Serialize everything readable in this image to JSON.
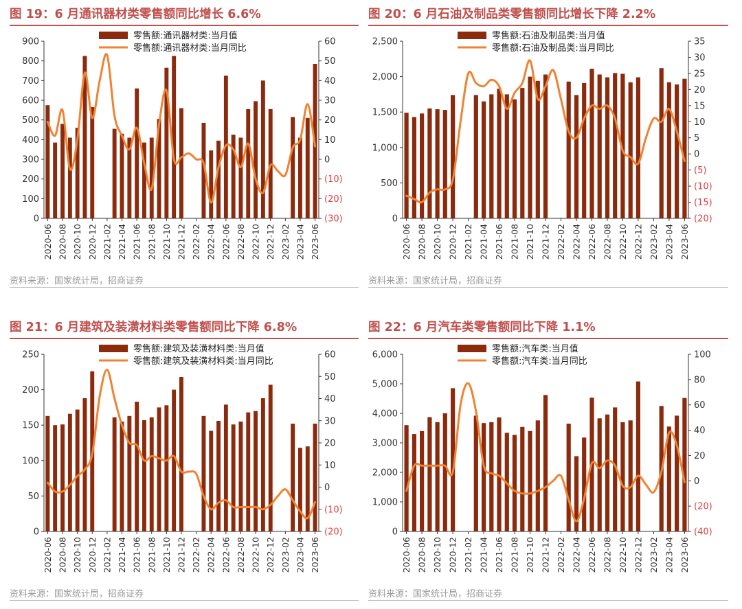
{
  "colors": {
    "bar": "#8b2a0c",
    "line": "#f08232",
    "neg": "#e04040",
    "title": "#c0504d",
    "axis": "#333333"
  },
  "source_text": "资料来源：国家统计局，招商证券",
  "months": [
    "2020-06",
    "2020-07",
    "2020-08",
    "2020-09",
    "2020-10",
    "2020-11",
    "2020-12",
    "2021-01",
    "2021-02",
    "2021-03",
    "2021-04",
    "2021-05",
    "2021-06",
    "2021-07",
    "2021-08",
    "2021-09",
    "2021-10",
    "2021-11",
    "2021-12",
    "2022-01",
    "2022-02",
    "2022-03",
    "2022-04",
    "2022-05",
    "2022-06",
    "2022-07",
    "2022-08",
    "2022-09",
    "2022-10",
    "2022-11",
    "2022-12",
    "2023-01",
    "2023-02",
    "2023-03",
    "2023-04",
    "2023-05",
    "2023-06"
  ],
  "tick_labels": [
    "2020-06",
    "2020-08",
    "2020-10",
    "2020-12",
    "2021-02",
    "2021-04",
    "2021-06",
    "2021-08",
    "2021-10",
    "2021-12",
    "2022-02",
    "2022-04",
    "2022-06",
    "2022-08",
    "2022-10",
    "2022-12",
    "2023-02",
    "2023-04",
    "2023-06"
  ],
  "chart_data": [
    {
      "id": "c19",
      "title": "图 19：6 月通讯器材类零售额同比增长 6.6%",
      "type": "bar+line",
      "legend": [
        "零售额:通讯器材类:当月值",
        "零售额:通讯器材类:当月同比"
      ],
      "left_axis": {
        "min": 0,
        "max": 900,
        "step": 100,
        "ticks": [
          "0",
          "100",
          "200",
          "300",
          "400",
          "500",
          "600",
          "700",
          "800",
          "900"
        ]
      },
      "right_axis": {
        "min": -30,
        "max": 60,
        "step": 10,
        "ticks": [
          "(30)",
          "(20)",
          "(10)",
          "0",
          "10",
          "20",
          "30",
          "40",
          "50",
          "60"
        ]
      },
      "series": [
        {
          "name": "零售额:通讯器材类:当月值",
          "axis": "left",
          "values": [
            575,
            385,
            480,
            410,
            460,
            825,
            565,
            null,
            null,
            455,
            430,
            410,
            660,
            385,
            410,
            505,
            765,
            825,
            560,
            null,
            null,
            485,
            345,
            395,
            725,
            425,
            410,
            555,
            595,
            700,
            555,
            null,
            null,
            515,
            410,
            510,
            785
          ]
        },
        {
          "name": "零售额:通讯器材类:当月同比",
          "axis": "right",
          "values": [
            19,
            12,
            25,
            -5,
            10,
            44,
            21,
            40,
            53,
            22,
            12,
            5,
            16,
            -2,
            -15,
            18,
            35,
            0,
            1,
            3,
            0,
            -2,
            -22,
            -4,
            7,
            5,
            -4,
            8,
            -10,
            -17,
            -3,
            -6,
            -8,
            6,
            10,
            28,
            6.6
          ]
        }
      ]
    },
    {
      "id": "c20",
      "title": "图 20：6 月石油及制品类零售额同比增长下降 2.2%",
      "type": "bar+line",
      "legend": [
        "零售额:石油及制品类:当月值",
        "零售额:石油及制品类:当月同比"
      ],
      "left_axis": {
        "min": 0,
        "max": 2500,
        "step": 500,
        "ticks": [
          "0",
          "500",
          "1,000",
          "1,500",
          "2,000",
          "2,500"
        ]
      },
      "right_axis": {
        "min": -20,
        "max": 35,
        "step": 5,
        "ticks": [
          "(20)",
          "(15)",
          "(10)",
          "(5)",
          "0",
          "5",
          "10",
          "15",
          "20",
          "25",
          "30",
          "35"
        ]
      },
      "series": [
        {
          "name": "零售额:石油及制品类:当月值",
          "axis": "left",
          "values": [
            1490,
            1430,
            1480,
            1550,
            1540,
            1530,
            1740,
            null,
            null,
            1740,
            1650,
            1750,
            1830,
            1750,
            1680,
            1840,
            2000,
            1940,
            2030,
            null,
            null,
            1930,
            1740,
            1910,
            2110,
            2030,
            1990,
            2050,
            2040,
            1920,
            1990,
            null,
            null,
            2120,
            1920,
            1890,
            1970
          ]
        },
        {
          "name": "零售额:石油及制品类:当月同比",
          "axis": "right",
          "values": [
            -13,
            -14,
            -15,
            -12,
            -11,
            -11,
            -8,
            10,
            25,
            22,
            21,
            23,
            21,
            14,
            19,
            22,
            29,
            17,
            21,
            26,
            17,
            7,
            5,
            11,
            15,
            14,
            15,
            11,
            1,
            -1,
            -3,
            5,
            11,
            10,
            14,
            7,
            -2.2
          ]
        }
      ]
    },
    {
      "id": "c21",
      "title": "图 21：6 月建筑及装潢材料类零售额同比下降 6.8%",
      "type": "bar+line",
      "legend": [
        "零售额:建筑及装潢材料类:当月值",
        "零售额:建筑及装潢材料类:当月同比"
      ],
      "left_axis": {
        "min": 0,
        "max": 250,
        "step": 50,
        "ticks": [
          "0",
          "50",
          "100",
          "150",
          "200",
          "250"
        ]
      },
      "right_axis": {
        "min": -20,
        "max": 60,
        "step": 10,
        "ticks": [
          "(20)",
          "(10)",
          "0",
          "10",
          "20",
          "30",
          "40",
          "50",
          "60"
        ]
      },
      "series": [
        {
          "name": "零售额:建筑及装潢材料类:当月值",
          "axis": "left",
          "values": [
            163,
            150,
            151,
            166,
            172,
            188,
            226,
            null,
            null,
            161,
            155,
            163,
            183,
            157,
            161,
            175,
            178,
            200,
            218,
            null,
            null,
            163,
            142,
            156,
            179,
            151,
            155,
            168,
            170,
            188,
            207,
            null,
            null,
            152,
            118,
            120,
            152
          ]
        },
        {
          "name": "零售额:建筑及装潢材料类:当月同比",
          "axis": "right",
          "values": [
            2,
            -2,
            -2,
            1,
            5,
            8,
            15,
            41,
            53,
            40,
            28,
            20,
            19,
            12,
            14,
            13,
            12,
            14,
            7,
            7,
            6,
            -4,
            -10,
            -7,
            -6,
            -9,
            -9,
            -9,
            -9,
            -10,
            -8,
            -4,
            -1,
            -6,
            -11,
            -14,
            -6.8
          ]
        }
      ]
    },
    {
      "id": "c22",
      "title": "图 22：6 月汽车类零售额同比下降 1.1%",
      "type": "bar+line",
      "legend": [
        "零售额:汽车类:当月值",
        "零售额:汽车类:当月同比"
      ],
      "left_axis": {
        "min": 0,
        "max": 6000,
        "step": 1000,
        "ticks": [
          "0",
          "1,000",
          "2,000",
          "3,000",
          "4,000",
          "5,000",
          "6,000"
        ]
      },
      "right_axis": {
        "min": -40,
        "max": 100,
        "step": 20,
        "ticks": [
          "(40)",
          "(20)",
          "0",
          "20",
          "40",
          "60",
          "80",
          "100"
        ]
      },
      "series": [
        {
          "name": "零售额:汽车类:当月值",
          "axis": "left",
          "values": [
            3600,
            3300,
            3400,
            3870,
            3700,
            4000,
            4850,
            null,
            null,
            3920,
            3670,
            3700,
            3860,
            3340,
            3270,
            3540,
            3400,
            3760,
            4620,
            null,
            null,
            3650,
            2550,
            3180,
            4530,
            3830,
            3960,
            4200,
            3700,
            3760,
            5080,
            null,
            null,
            4250,
            3550,
            3920,
            4520
          ]
        },
        {
          "name": "零售额:汽车类:当月同比",
          "axis": "right",
          "values": [
            -8,
            12,
            12,
            12,
            12,
            12,
            7,
            60,
            77,
            55,
            12,
            6,
            4,
            -2,
            -8,
            -10,
            -10,
            -8,
            -5,
            0,
            4,
            -15,
            -32,
            -14,
            14,
            10,
            16,
            12,
            -4,
            -5,
            4,
            -3,
            -9,
            7,
            38,
            28,
            -1.1
          ]
        }
      ]
    }
  ]
}
